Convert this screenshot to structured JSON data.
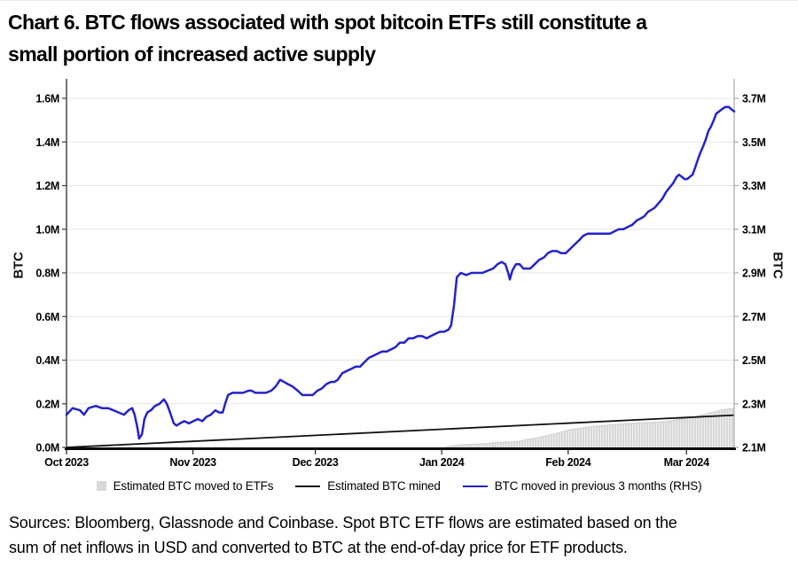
{
  "title": {
    "line1": "Chart 6. BTC flows associated with spot bitcoin ETFs still constitute a",
    "line2": "small portion of increased active supply"
  },
  "source_note": {
    "line1": "Sources: Bloomberg, Glassnode and Coinbase. Spot BTC ETF flows are estimated based on the",
    "line2": "sum of net inflows in USD and converted to BTC at the end-of-day price for ETF products."
  },
  "legend": [
    {
      "swatch": "gray-square",
      "label": "Estimated BTC moved to ETFs",
      "color": "#d8d8d8"
    },
    {
      "swatch": "black-line",
      "label": "Estimated BTC mined",
      "color": "#111111"
    },
    {
      "swatch": "blue-line",
      "label": "BTC moved in previous 3 months (RHS)",
      "color": "#2422c9"
    }
  ],
  "colors": {
    "blue_line": "#2422c9",
    "black_line": "#111111",
    "etf_bar_fill": "#d8d8d8",
    "gridline": "#e5e5e5",
    "left_spine": "#3c3c3c",
    "right_spine": "#aaaaaa",
    "bottom_axis": "#0a0a0a"
  },
  "chart_data": {
    "type": "line",
    "title": "BTC flows: ETF moves vs mined vs 3-month active supply",
    "x_unit": "days since 2023-10-01",
    "x_max_day": 163.7,
    "x_ticks": {
      "labels": [
        "Oct 2023",
        "Nov 2023",
        "Dec 2023",
        "Jan 2024",
        "Feb 2024",
        "Mar 2024"
      ],
      "days": [
        0,
        31,
        61,
        92,
        123,
        152
      ]
    },
    "y_left": {
      "label": "BTC",
      "range": [
        0.0,
        1.6
      ],
      "tick_values": [
        0.0,
        0.2,
        0.4,
        0.6,
        0.8,
        1.0,
        1.2,
        1.4,
        1.6
      ],
      "tick_labels": [
        "0.0M",
        "0.2M",
        "0.4M",
        "0.6M",
        "0.8M",
        "1.0M",
        "1.2M",
        "1.4M",
        "1.6M"
      ]
    },
    "y_right": {
      "label": "BTC",
      "range": [
        2.1,
        3.7
      ],
      "tick_values": [
        2.1,
        2.3,
        2.5,
        2.7,
        2.9,
        3.1,
        3.3,
        3.5,
        3.7
      ],
      "tick_labels": [
        "2.1M",
        "2.3M",
        "2.5M",
        "2.7M",
        "2.9M",
        "3.1M",
        "3.3M",
        "3.5M",
        "3.7M"
      ]
    },
    "grid": true,
    "legend_position": "bottom",
    "series": [
      {
        "name": "Estimated BTC moved to ETFs",
        "type": "area",
        "axis": "left",
        "color": "#d8d8d8",
        "points": [
          [
            93,
            0
          ],
          [
            94,
            0.005
          ],
          [
            96,
            0.01
          ],
          [
            98,
            0.013
          ],
          [
            101,
            0.016
          ],
          [
            103.3,
            0.018
          ],
          [
            105.4,
            0.022
          ],
          [
            107.6,
            0.025
          ],
          [
            108.7,
            0.024
          ],
          [
            110.9,
            0.028
          ],
          [
            113,
            0.036
          ],
          [
            115.2,
            0.044
          ],
          [
            117.4,
            0.052
          ],
          [
            119.6,
            0.062
          ],
          [
            121.7,
            0.072
          ],
          [
            123.9,
            0.082
          ],
          [
            126.1,
            0.088
          ],
          [
            128.3,
            0.094
          ],
          [
            130.4,
            0.098
          ],
          [
            132.6,
            0.102
          ],
          [
            134.8,
            0.105
          ],
          [
            137,
            0.108
          ],
          [
            139.1,
            0.111
          ],
          [
            141.3,
            0.113
          ],
          [
            143.5,
            0.114
          ],
          [
            145.7,
            0.117
          ],
          [
            147.8,
            0.122
          ],
          [
            150,
            0.128
          ],
          [
            152.2,
            0.134
          ],
          [
            154.3,
            0.141
          ],
          [
            156.5,
            0.152
          ],
          [
            158.7,
            0.163
          ],
          [
            160.9,
            0.172
          ],
          [
            162.4,
            0.176
          ],
          [
            163.7,
            0.178
          ]
        ]
      },
      {
        "name": "Estimated BTC mined",
        "type": "line",
        "axis": "left",
        "color": "#111111",
        "points": [
          [
            0,
            0.0
          ],
          [
            163.7,
            0.148
          ]
        ]
      },
      {
        "name": "BTC moved in previous 3 months (RHS)",
        "type": "line",
        "axis": "right",
        "color": "#2422c9",
        "points": [
          [
            0,
            2.25
          ],
          [
            1.5,
            2.28
          ],
          [
            3.3,
            2.27
          ],
          [
            4.3,
            2.25
          ],
          [
            5.4,
            2.28
          ],
          [
            7.2,
            2.29
          ],
          [
            8.7,
            2.28
          ],
          [
            10.2,
            2.28
          ],
          [
            11.5,
            2.27
          ],
          [
            12.8,
            2.26
          ],
          [
            14.1,
            2.25
          ],
          [
            15.2,
            2.27
          ],
          [
            16.1,
            2.28
          ],
          [
            16.7,
            2.25
          ],
          [
            17.4,
            2.19
          ],
          [
            17.8,
            2.14
          ],
          [
            18.5,
            2.16
          ],
          [
            19.1,
            2.23
          ],
          [
            19.8,
            2.26
          ],
          [
            20.7,
            2.27
          ],
          [
            21.7,
            2.29
          ],
          [
            22.8,
            2.3
          ],
          [
            23.9,
            2.32
          ],
          [
            24.6,
            2.3
          ],
          [
            25.4,
            2.26
          ],
          [
            26.3,
            2.21
          ],
          [
            27,
            2.2
          ],
          [
            27.8,
            2.21
          ],
          [
            28.9,
            2.22
          ],
          [
            30,
            2.21
          ],
          [
            31.1,
            2.22
          ],
          [
            32.2,
            2.23
          ],
          [
            33.3,
            2.22
          ],
          [
            34.3,
            2.24
          ],
          [
            35.4,
            2.25
          ],
          [
            36.5,
            2.27
          ],
          [
            37.4,
            2.26
          ],
          [
            38.3,
            2.26
          ],
          [
            38.9,
            2.3
          ],
          [
            39.6,
            2.34
          ],
          [
            40.7,
            2.35
          ],
          [
            42,
            2.35
          ],
          [
            43.3,
            2.35
          ],
          [
            44.6,
            2.36
          ],
          [
            45.4,
            2.36
          ],
          [
            46.3,
            2.35
          ],
          [
            47.6,
            2.35
          ],
          [
            48.9,
            2.35
          ],
          [
            50.2,
            2.36
          ],
          [
            51.3,
            2.38
          ],
          [
            52.4,
            2.41
          ],
          [
            53.3,
            2.4
          ],
          [
            54.3,
            2.39
          ],
          [
            55.4,
            2.38
          ],
          [
            56.7,
            2.36
          ],
          [
            57.8,
            2.34
          ],
          [
            59.1,
            2.34
          ],
          [
            60.4,
            2.34
          ],
          [
            61.5,
            2.36
          ],
          [
            62.6,
            2.37
          ],
          [
            63.7,
            2.39
          ],
          [
            64.8,
            2.4
          ],
          [
            65.7,
            2.4
          ],
          [
            66.5,
            2.41
          ],
          [
            67.6,
            2.44
          ],
          [
            68.7,
            2.45
          ],
          [
            69.8,
            2.46
          ],
          [
            70.9,
            2.47
          ],
          [
            72,
            2.47
          ],
          [
            73,
            2.49
          ],
          [
            74.1,
            2.51
          ],
          [
            75.2,
            2.52
          ],
          [
            76.3,
            2.53
          ],
          [
            77.4,
            2.54
          ],
          [
            78.5,
            2.54
          ],
          [
            79.6,
            2.55
          ],
          [
            80.7,
            2.56
          ],
          [
            81.7,
            2.58
          ],
          [
            82.8,
            2.58
          ],
          [
            83.9,
            2.6
          ],
          [
            85,
            2.6
          ],
          [
            86.1,
            2.61
          ],
          [
            87.2,
            2.61
          ],
          [
            88.3,
            2.6
          ],
          [
            89.3,
            2.61
          ],
          [
            90.4,
            2.62
          ],
          [
            91.5,
            2.63
          ],
          [
            92.6,
            2.63
          ],
          [
            93.7,
            2.64
          ],
          [
            94.3,
            2.66
          ],
          [
            95,
            2.75
          ],
          [
            95.7,
            2.88
          ],
          [
            96.7,
            2.9
          ],
          [
            98,
            2.89
          ],
          [
            99.3,
            2.9
          ],
          [
            100.7,
            2.9
          ],
          [
            102,
            2.9
          ],
          [
            103.3,
            2.91
          ],
          [
            104.6,
            2.92
          ],
          [
            105.7,
            2.94
          ],
          [
            106.7,
            2.95
          ],
          [
            107.6,
            2.94
          ],
          [
            108.3,
            2.9
          ],
          [
            108.7,
            2.87
          ],
          [
            109.3,
            2.91
          ],
          [
            110.2,
            2.94
          ],
          [
            111.1,
            2.94
          ],
          [
            112,
            2.92
          ],
          [
            112.8,
            2.92
          ],
          [
            113.7,
            2.92
          ],
          [
            114.8,
            2.94
          ],
          [
            115.9,
            2.96
          ],
          [
            117,
            2.97
          ],
          [
            118,
            2.99
          ],
          [
            119.1,
            3.0
          ],
          [
            120.2,
            3.0
          ],
          [
            121.3,
            2.99
          ],
          [
            122.4,
            2.99
          ],
          [
            123.5,
            3.01
          ],
          [
            124.6,
            3.03
          ],
          [
            125.7,
            3.05
          ],
          [
            126.7,
            3.07
          ],
          [
            127.8,
            3.08
          ],
          [
            128.9,
            3.08
          ],
          [
            130,
            3.08
          ],
          [
            131.1,
            3.08
          ],
          [
            132.2,
            3.08
          ],
          [
            133.3,
            3.08
          ],
          [
            134.3,
            3.09
          ],
          [
            135.4,
            3.1
          ],
          [
            136.5,
            3.1
          ],
          [
            137.6,
            3.11
          ],
          [
            138.7,
            3.12
          ],
          [
            139.8,
            3.14
          ],
          [
            140.9,
            3.15
          ],
          [
            141.7,
            3.16
          ],
          [
            142.6,
            3.18
          ],
          [
            143.5,
            3.19
          ],
          [
            144.3,
            3.2
          ],
          [
            145.2,
            3.22
          ],
          [
            146.1,
            3.24
          ],
          [
            147,
            3.27
          ],
          [
            147.8,
            3.29
          ],
          [
            148.7,
            3.31
          ],
          [
            149.6,
            3.34
          ],
          [
            150.2,
            3.35
          ],
          [
            150.9,
            3.34
          ],
          [
            151.5,
            3.33
          ],
          [
            152.2,
            3.33
          ],
          [
            152.8,
            3.34
          ],
          [
            153.5,
            3.35
          ],
          [
            154.1,
            3.38
          ],
          [
            154.8,
            3.42
          ],
          [
            155.4,
            3.45
          ],
          [
            156.1,
            3.48
          ],
          [
            156.7,
            3.51
          ],
          [
            157.4,
            3.55
          ],
          [
            158,
            3.57
          ],
          [
            158.7,
            3.6
          ],
          [
            159.3,
            3.63
          ],
          [
            160,
            3.64
          ],
          [
            160.7,
            3.65
          ],
          [
            161.5,
            3.66
          ],
          [
            162.4,
            3.66
          ],
          [
            163,
            3.65
          ],
          [
            163.7,
            3.64
          ]
        ]
      }
    ]
  }
}
